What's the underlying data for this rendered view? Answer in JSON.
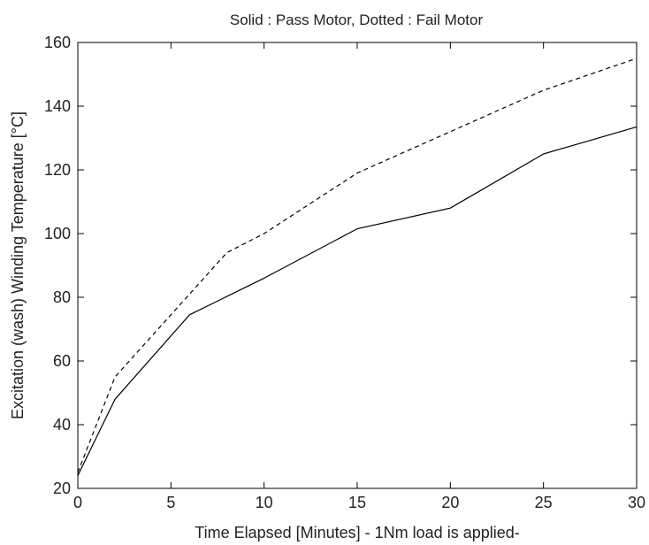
{
  "chart_data": {
    "type": "line",
    "title": "Solid : Pass Motor, Dotted : Fail Motor",
    "xlabel": "Time Elapsed [Minutes] - 1Nm load is applied-",
    "ylabel": "Excitation (wash) Winding Temperature [°C]",
    "xlim": [
      0,
      30
    ],
    "ylim": [
      20,
      160
    ],
    "xticks": [
      0,
      5,
      10,
      15,
      20,
      25,
      30
    ],
    "yticks": [
      20,
      40,
      60,
      80,
      100,
      120,
      140,
      160
    ],
    "grid": false,
    "series": [
      {
        "style": "solid",
        "color": "#000000",
        "x": [
          0,
          2,
          6,
          10,
          15,
          20,
          25,
          30
        ],
        "y": [
          24,
          48,
          74.5,
          86,
          101.5,
          108,
          125,
          133.5
        ]
      },
      {
        "style": "dashed",
        "color": "#000000",
        "x": [
          0,
          2,
          6,
          8,
          10,
          15,
          20,
          25,
          30
        ],
        "y": [
          25,
          55,
          81,
          94,
          100,
          119,
          132,
          145,
          155
        ]
      }
    ]
  }
}
